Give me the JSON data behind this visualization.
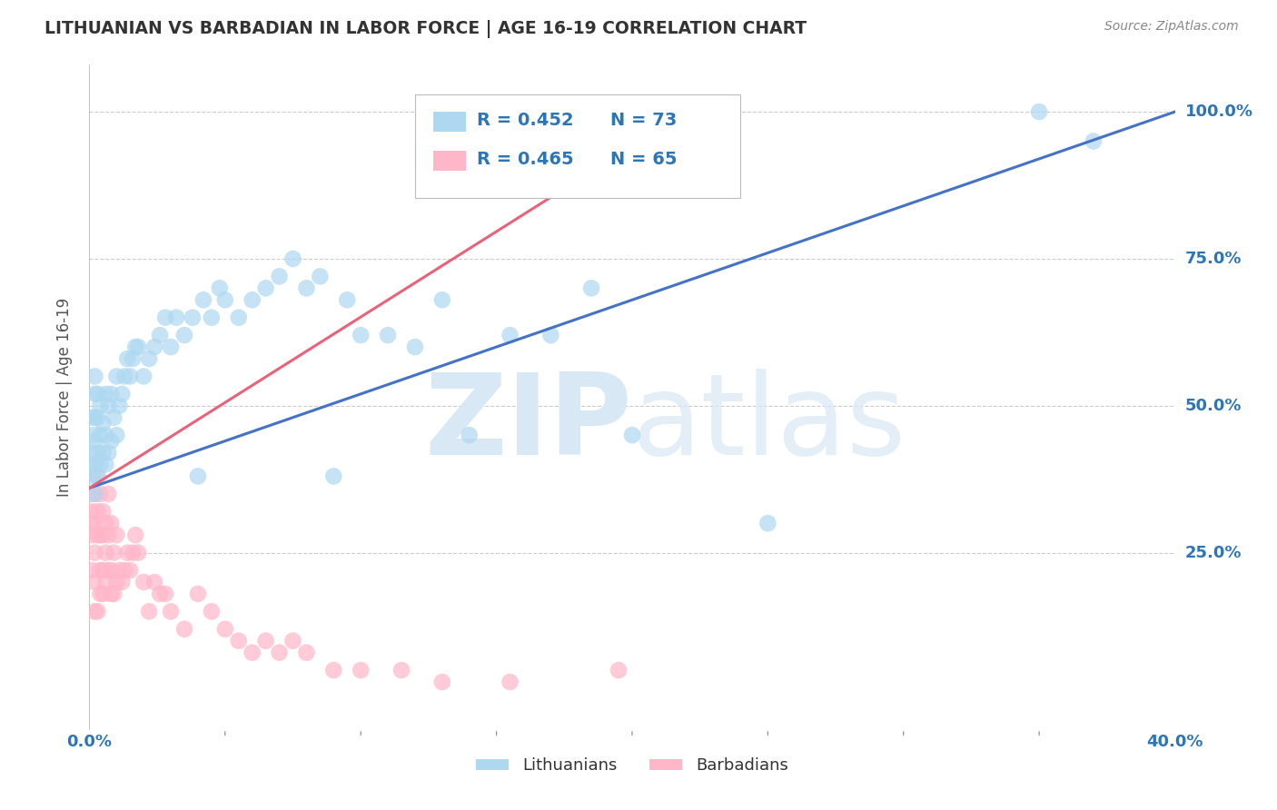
{
  "title": "LITHUANIAN VS BARBADIAN IN LABOR FORCE | AGE 16-19 CORRELATION CHART",
  "source_text": "Source: ZipAtlas.com",
  "ylabel": "In Labor Force | Age 16-19",
  "xlim": [
    0.0,
    0.4
  ],
  "ylim": [
    -0.05,
    1.08
  ],
  "yticks": [
    0.25,
    0.5,
    0.75,
    1.0
  ],
  "ytick_labels": [
    "25.0%",
    "50.0%",
    "75.0%",
    "100.0%"
  ],
  "xtick_positions": [
    0.0,
    0.05,
    0.1,
    0.15,
    0.2,
    0.25,
    0.3,
    0.35,
    0.4
  ],
  "r_lith": 0.452,
  "n_lith": 73,
  "r_barb": 0.465,
  "n_barb": 65,
  "color_lith": "#ADD8F0",
  "color_barb": "#FFB6C8",
  "line_color_lith": "#4472C4",
  "line_color_barb": "#E8637A",
  "legend_r_color": "#2E75B6",
  "background_color": "#FFFFFF",
  "grid_color": "#CCCCCC",
  "title_color": "#333333",
  "axis_label_color": "#555555",
  "tick_color": "#2E75B6",
  "lith_x": [
    0.001,
    0.001,
    0.001,
    0.001,
    0.001,
    0.002,
    0.002,
    0.002,
    0.002,
    0.002,
    0.002,
    0.003,
    0.003,
    0.003,
    0.003,
    0.004,
    0.004,
    0.004,
    0.005,
    0.005,
    0.006,
    0.006,
    0.006,
    0.007,
    0.007,
    0.008,
    0.008,
    0.009,
    0.01,
    0.01,
    0.011,
    0.012,
    0.013,
    0.014,
    0.015,
    0.016,
    0.017,
    0.018,
    0.02,
    0.022,
    0.024,
    0.026,
    0.028,
    0.03,
    0.032,
    0.035,
    0.038,
    0.04,
    0.042,
    0.045,
    0.048,
    0.05,
    0.055,
    0.06,
    0.065,
    0.07,
    0.075,
    0.08,
    0.085,
    0.09,
    0.095,
    0.1,
    0.11,
    0.12,
    0.13,
    0.14,
    0.155,
    0.17,
    0.185,
    0.2,
    0.25,
    0.35,
    0.37
  ],
  "lith_y": [
    0.38,
    0.4,
    0.42,
    0.45,
    0.48,
    0.35,
    0.4,
    0.44,
    0.48,
    0.52,
    0.55,
    0.38,
    0.42,
    0.48,
    0.52,
    0.4,
    0.45,
    0.5,
    0.42,
    0.47,
    0.4,
    0.45,
    0.52,
    0.42,
    0.5,
    0.44,
    0.52,
    0.48,
    0.45,
    0.55,
    0.5,
    0.52,
    0.55,
    0.58,
    0.55,
    0.58,
    0.6,
    0.6,
    0.55,
    0.58,
    0.6,
    0.62,
    0.65,
    0.6,
    0.65,
    0.62,
    0.65,
    0.38,
    0.68,
    0.65,
    0.7,
    0.68,
    0.65,
    0.68,
    0.7,
    0.72,
    0.75,
    0.7,
    0.72,
    0.38,
    0.68,
    0.62,
    0.62,
    0.6,
    0.68,
    0.45,
    0.62,
    0.62,
    0.7,
    0.45,
    0.3,
    1.0,
    0.95
  ],
  "barb_x": [
    0.001,
    0.001,
    0.001,
    0.001,
    0.001,
    0.002,
    0.002,
    0.002,
    0.002,
    0.002,
    0.003,
    0.003,
    0.003,
    0.003,
    0.004,
    0.004,
    0.004,
    0.004,
    0.005,
    0.005,
    0.005,
    0.005,
    0.006,
    0.006,
    0.006,
    0.007,
    0.007,
    0.007,
    0.008,
    0.008,
    0.008,
    0.009,
    0.009,
    0.01,
    0.01,
    0.011,
    0.012,
    0.013,
    0.014,
    0.015,
    0.016,
    0.017,
    0.018,
    0.02,
    0.022,
    0.024,
    0.026,
    0.028,
    0.03,
    0.035,
    0.04,
    0.045,
    0.05,
    0.055,
    0.06,
    0.065,
    0.07,
    0.075,
    0.08,
    0.09,
    0.1,
    0.115,
    0.13,
    0.155,
    0.195
  ],
  "barb_y": [
    0.3,
    0.32,
    0.35,
    0.28,
    0.22,
    0.25,
    0.3,
    0.35,
    0.2,
    0.15,
    0.28,
    0.32,
    0.38,
    0.15,
    0.22,
    0.28,
    0.35,
    0.18,
    0.18,
    0.22,
    0.28,
    0.32,
    0.2,
    0.25,
    0.3,
    0.22,
    0.28,
    0.35,
    0.18,
    0.22,
    0.3,
    0.18,
    0.25,
    0.2,
    0.28,
    0.22,
    0.2,
    0.22,
    0.25,
    0.22,
    0.25,
    0.28,
    0.25,
    0.2,
    0.15,
    0.2,
    0.18,
    0.18,
    0.15,
    0.12,
    0.18,
    0.15,
    0.12,
    0.1,
    0.08,
    0.1,
    0.08,
    0.1,
    0.08,
    0.05,
    0.05,
    0.05,
    0.03,
    0.03,
    0.05
  ]
}
